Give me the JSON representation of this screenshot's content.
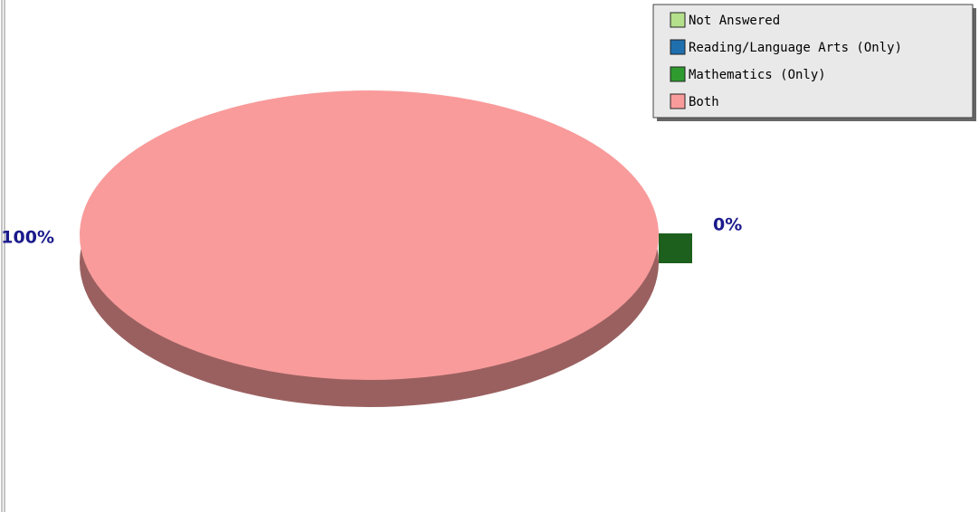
{
  "chart_data": {
    "type": "pie",
    "categories": [
      "Not Answered",
      "Reading/Language Arts (Only)",
      "Mathematics (Only)",
      "Both"
    ],
    "values": [
      0,
      0,
      0,
      100
    ],
    "value_labels": [
      null,
      null,
      "0%",
      "100%"
    ],
    "colors": [
      "#b4e08c",
      "#1f6fae",
      "#2f9a2f",
      "#f99b9b"
    ],
    "legend": "top-right"
  }
}
